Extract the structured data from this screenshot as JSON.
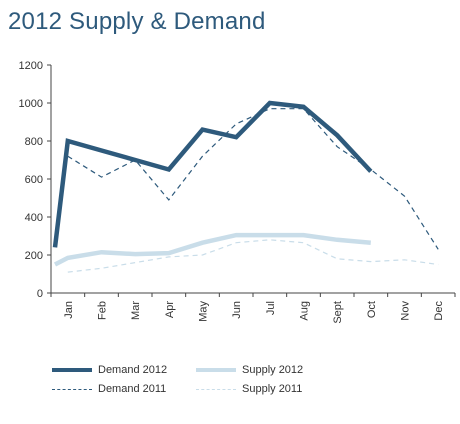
{
  "title": "2012 Supply & Demand",
  "chart_data": {
    "type": "line",
    "title": "2012 Supply & Demand",
    "categories": [
      "Jan",
      "Feb",
      "Mar",
      "Apr",
      "May",
      "Jun",
      "Jul",
      "Aug",
      "Sept",
      "Oct",
      "Nov",
      "Dec"
    ],
    "ylim": [
      0,
      1200
    ],
    "yticks": [
      "0",
      "200",
      "400",
      "600",
      "800",
      "1000",
      "1200"
    ],
    "grid": false,
    "legend": "bottom",
    "series": [
      {
        "name": "Demand 2012",
        "start": 240,
        "values": [
          800,
          750,
          700,
          650,
          860,
          820,
          1000,
          980,
          830,
          640,
          null,
          null
        ],
        "color": "#2e5a7c",
        "style": "solid-thick"
      },
      {
        "name": "Demand 2011",
        "values": [
          720,
          610,
          700,
          490,
          720,
          890,
          970,
          970,
          770,
          650,
          510,
          230
        ],
        "color": "#2e5a7c",
        "style": "dashed"
      },
      {
        "name": "Supply 2012",
        "start": 150,
        "values": [
          185,
          215,
          205,
          210,
          265,
          305,
          305,
          305,
          280,
          265,
          null,
          null
        ],
        "color": "#c9dde9",
        "style": "solid-thick"
      },
      {
        "name": "Supply 2011",
        "values": [
          110,
          130,
          160,
          190,
          200,
          265,
          280,
          265,
          180,
          165,
          175,
          150
        ],
        "color": "#c9dde9",
        "style": "dashed"
      }
    ]
  }
}
